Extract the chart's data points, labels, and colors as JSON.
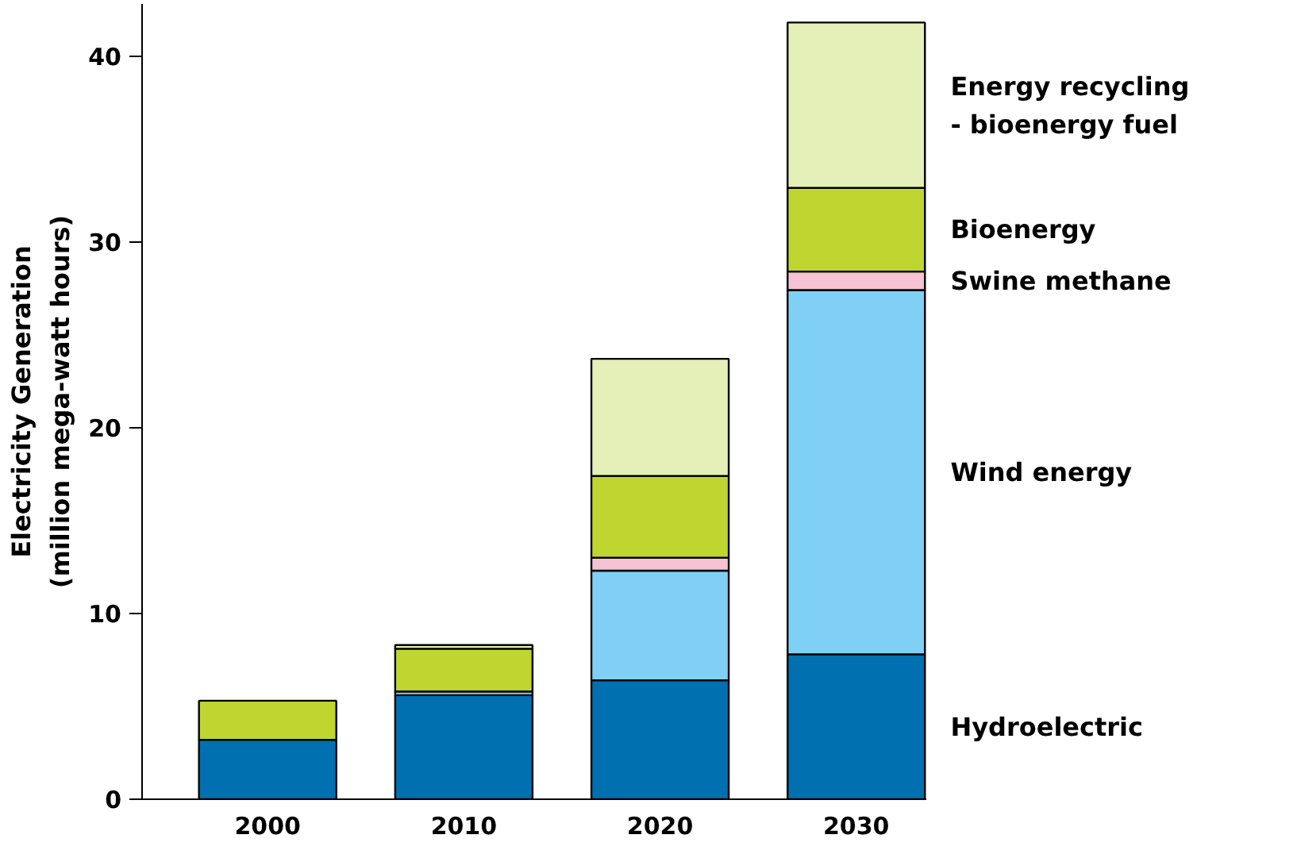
{
  "chart_data": {
    "type": "bar",
    "stacked": true,
    "ylabel": "Electricity Generation\n(million mega-watt hours)",
    "categories": [
      "2000",
      "2010",
      "2020",
      "2030"
    ],
    "series": [
      {
        "name": "Hydroelectric",
        "color": "#0070b0",
        "values": [
          3.2,
          5.6,
          6.4,
          7.8
        ]
      },
      {
        "name": "Wind energy",
        "color": "#7fd0f4",
        "values": [
          null,
          0.2,
          5.9,
          19.6
        ]
      },
      {
        "name": "Swine methane",
        "color": "#f6c3d4",
        "values": [
          null,
          null,
          0.7,
          1.0
        ]
      },
      {
        "name": "Bioenergy",
        "color": "#bed62f",
        "values": [
          2.1,
          2.3,
          4.4,
          4.5
        ]
      },
      {
        "name": "Energy recycling\n- bioenergy fuel",
        "color": "#e5efb8",
        "values": [
          null,
          0.2,
          6.3,
          8.9
        ]
      }
    ],
    "ylim": [
      0,
      42.8
    ],
    "yticks": [
      0,
      10,
      20,
      30,
      40
    ],
    "grid": false
  }
}
